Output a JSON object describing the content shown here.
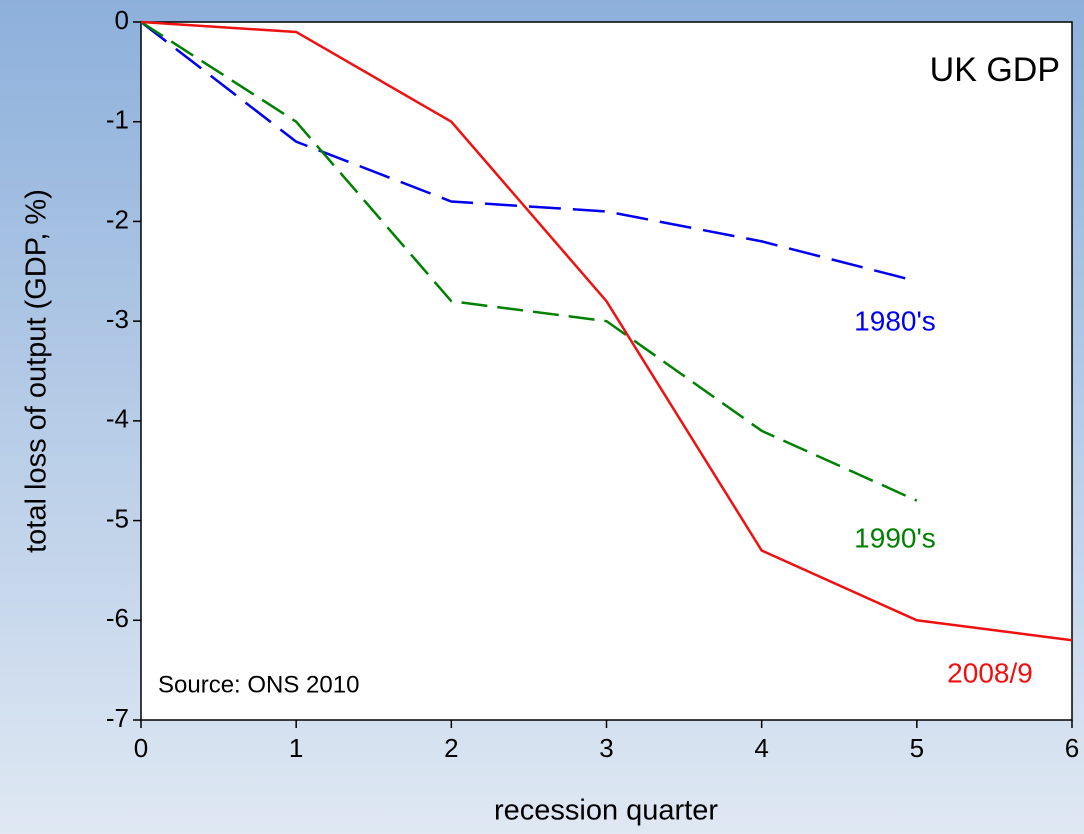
{
  "chart_data": {
    "type": "line",
    "annotations": [
      "UK GDP",
      "Source: ONS 2010"
    ],
    "xlabel": "recession quarter",
    "ylabel": "total loss of output (GDP, %)",
    "xlim": [
      0,
      6
    ],
    "xticks": [
      0,
      1,
      2,
      3,
      4,
      5,
      6
    ],
    "ylim": [
      -7,
      0
    ],
    "yticks": [
      0,
      -1,
      -2,
      -3,
      -4,
      -5,
      -6,
      -7
    ],
    "series": [
      {
        "name": "1980's",
        "color": "#0000ee",
        "dash": "dashed",
        "x": [
          0,
          1,
          2,
          3,
          4,
          5
        ],
        "values": [
          0,
          -1.2,
          -1.8,
          -1.9,
          -2.2,
          -2.6
        ]
      },
      {
        "name": "1990's",
        "color": "#008000",
        "dash": "dashed",
        "x": [
          0,
          1,
          2,
          3,
          4,
          5
        ],
        "values": [
          0,
          -1.0,
          -2.8,
          -3.0,
          -4.1,
          -4.8
        ]
      },
      {
        "name": "2008/9",
        "color": "#ee1111",
        "dash": "solid",
        "x": [
          0,
          1,
          2,
          3,
          4,
          5,
          6
        ],
        "values": [
          0,
          -0.1,
          -1.0,
          -2.8,
          -5.3,
          -6.0,
          -6.2
        ]
      }
    ]
  }
}
